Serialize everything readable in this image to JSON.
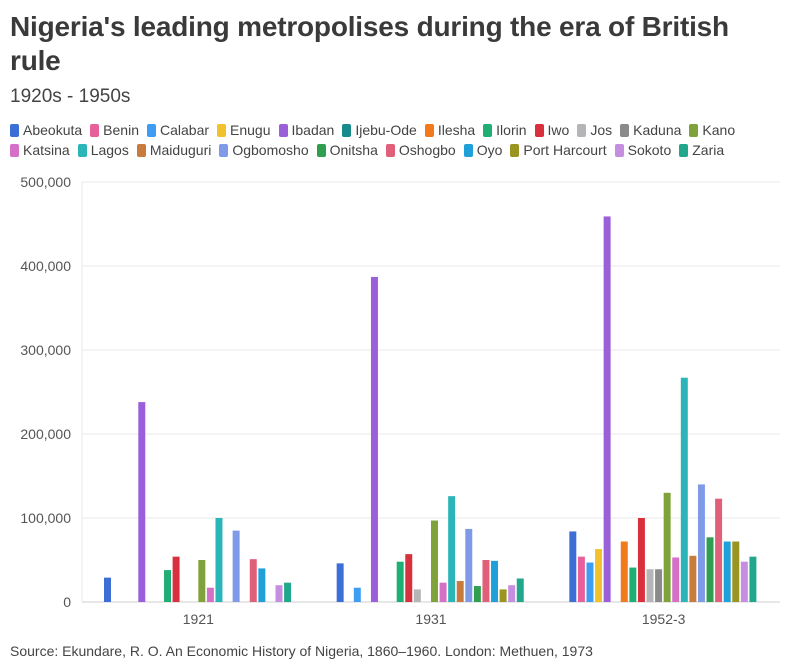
{
  "title": "Nigeria's leading metropolises during the era of British rule",
  "subtitle": "1920s - 1950s",
  "source": "Source: Ekundare, R. O. An Economic History of Nigeria, 1860–1960. London: Methuen, 1973",
  "chart_data": {
    "type": "bar",
    "title": "Nigeria's leading metropolises during the era of British rule",
    "subtitle": "1920s - 1950s",
    "categories": [
      "1921",
      "1931",
      "1952-3"
    ],
    "ylim": [
      0,
      500000
    ],
    "yticks": [
      0,
      100000,
      200000,
      300000,
      400000,
      500000
    ],
    "ytick_labels": [
      "0",
      "100,000",
      "200,000",
      "300,000",
      "400,000",
      "500,000"
    ],
    "legend_position": "top",
    "grid": true,
    "series": [
      {
        "name": "Abeokuta",
        "color": "#3b6fd6",
        "values": [
          29000,
          46000,
          84000
        ]
      },
      {
        "name": "Benin",
        "color": "#e8609a",
        "values": [
          null,
          null,
          54000
        ]
      },
      {
        "name": "Calabar",
        "color": "#3d9df2",
        "values": [
          null,
          17000,
          47000
        ]
      },
      {
        "name": "Enugu",
        "color": "#f2c12e",
        "values": [
          null,
          null,
          63000
        ]
      },
      {
        "name": "Ibadan",
        "color": "#9b5fd9",
        "values": [
          238000,
          387000,
          459000
        ]
      },
      {
        "name": "Ijebu-Ode",
        "color": "#178a8c",
        "values": [
          null,
          null,
          null
        ]
      },
      {
        "name": "Ilesha",
        "color": "#f27a1a",
        "values": [
          null,
          null,
          72000
        ]
      },
      {
        "name": "Ilorin",
        "color": "#1fae74",
        "values": [
          38000,
          48000,
          41000
        ]
      },
      {
        "name": "Iwo",
        "color": "#d9303d",
        "values": [
          54000,
          57000,
          100000
        ]
      },
      {
        "name": "Jos",
        "color": "#b5b5b8",
        "values": [
          null,
          15000,
          39000
        ]
      },
      {
        "name": "Kaduna",
        "color": "#8a8a8a",
        "values": [
          null,
          null,
          39000
        ]
      },
      {
        "name": "Kano",
        "color": "#7fa33a",
        "values": [
          50000,
          97000,
          130000
        ]
      },
      {
        "name": "Katsina",
        "color": "#d470c6",
        "values": [
          17000,
          23000,
          53000
        ]
      },
      {
        "name": "Lagos",
        "color": "#2bb5b8",
        "values": [
          100000,
          126000,
          267000
        ]
      },
      {
        "name": "Maiduguri",
        "color": "#c77b3c",
        "values": [
          null,
          25000,
          55000
        ]
      },
      {
        "name": "Ogbomosho",
        "color": "#7f9be8",
        "values": [
          85000,
          87000,
          140000
        ]
      },
      {
        "name": "Onitsha",
        "color": "#2f9e4f",
        "values": [
          null,
          19000,
          77000
        ]
      },
      {
        "name": "Oshogbo",
        "color": "#e0607a",
        "values": [
          51000,
          50000,
          123000
        ]
      },
      {
        "name": "Oyo",
        "color": "#1fa0d9",
        "values": [
          40000,
          49000,
          72000
        ]
      },
      {
        "name": "Port Harcourt",
        "color": "#9a9420",
        "values": [
          null,
          15000,
          72000
        ]
      },
      {
        "name": "Sokoto",
        "color": "#c58ee0",
        "values": [
          20000,
          20000,
          48000
        ]
      },
      {
        "name": "Zaria",
        "color": "#21a88c",
        "values": [
          23000,
          28000,
          54000
        ]
      }
    ]
  }
}
